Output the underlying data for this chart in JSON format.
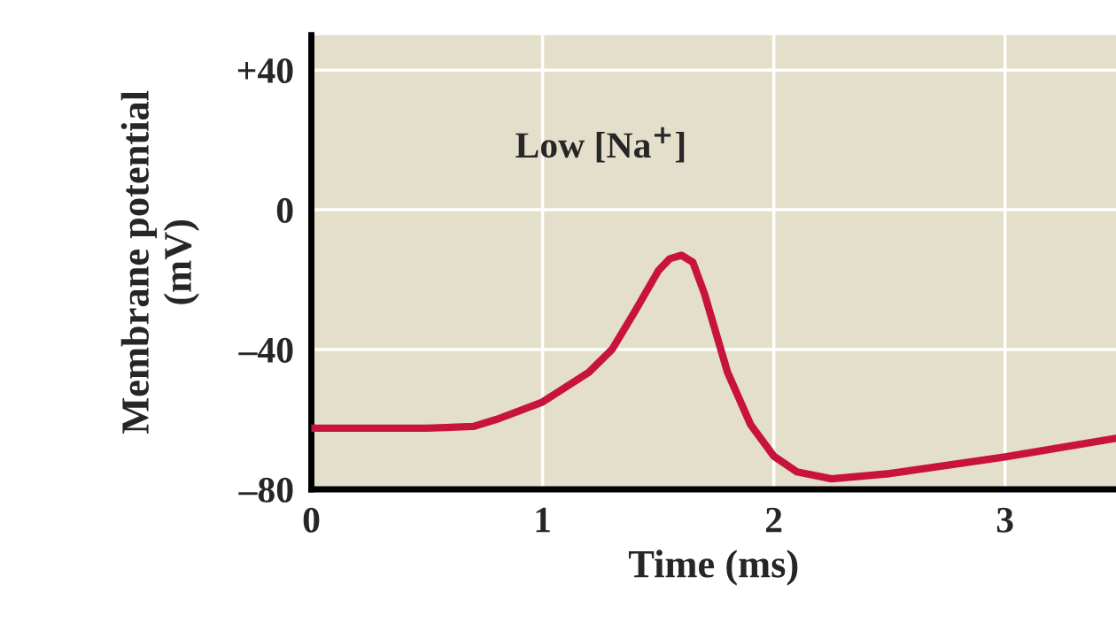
{
  "chart_data": {
    "type": "line",
    "xlabel": "Time (ms)",
    "ylabel": "Membrane potential\n(mV)",
    "annotations": [
      "Low [Na$^{+}$]"
    ],
    "x": [
      0,
      0.5,
      0.7,
      0.8,
      1.0,
      1.2,
      1.3,
      1.4,
      1.5,
      1.55,
      1.6,
      1.65,
      1.7,
      1.8,
      1.9,
      2.0,
      2.1,
      2.25,
      2.5,
      3.0,
      3.48
    ],
    "series": [
      {
        "color": "#c8143c",
        "values": [
          -62.5,
          -62.5,
          -62,
          -60,
          -55,
          -46.5,
          -40,
          -29,
          -17.5,
          -14,
          -13,
          -15,
          -24,
          -46.5,
          -61.5,
          -70.5,
          -75,
          -77,
          -75.5,
          -70.7,
          -65.4
        ]
      }
    ],
    "xlim": [
      0,
      3.48
    ],
    "xticks": [
      0,
      1,
      2,
      3
    ],
    "ylim": [
      -80,
      50
    ],
    "yticks": [
      {
        "value": 40,
        "label": "+40"
      },
      0,
      {
        "value": -40,
        "label": "–40"
      },
      {
        "value": -80,
        "label": "–80"
      }
    ],
    "grid": true,
    "marker": "none",
    "line_style": "solid",
    "legend": false
  }
}
